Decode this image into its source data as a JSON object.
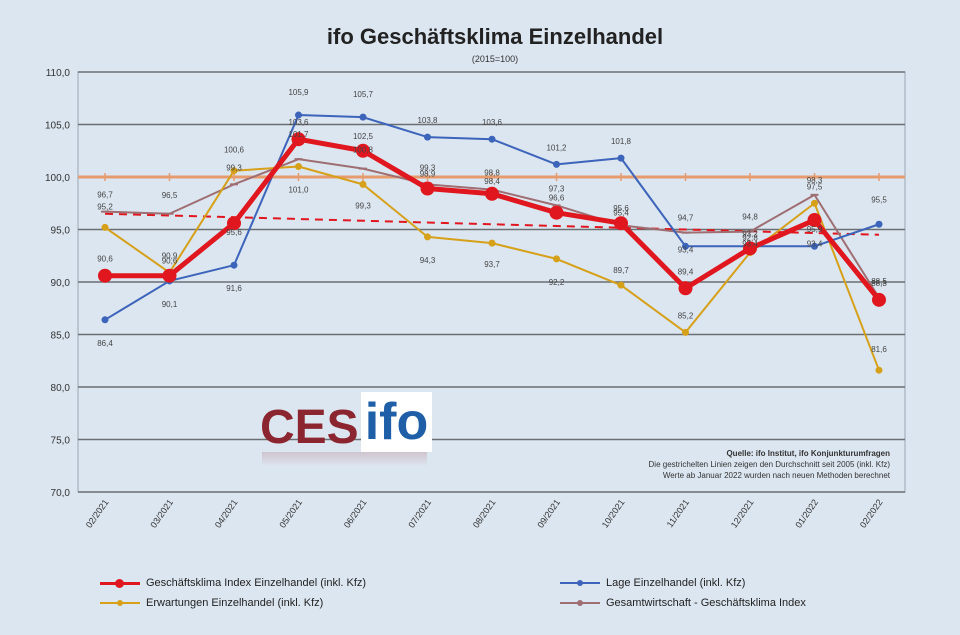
{
  "chart_data": {
    "type": "line",
    "title": "ifo Geschäftsklima Einzelhandel",
    "subtitle": "(2015=100)",
    "categories": [
      "02/2021",
      "03/2021",
      "04/2021",
      "05/2021",
      "06/2021",
      "07/2021",
      "08/2021",
      "09/2021",
      "10/2021",
      "11/2021",
      "12/2021",
      "01/2022",
      "02/2022"
    ],
    "ylim": [
      70,
      110
    ],
    "yticks": [
      "70,0",
      "75,0",
      "80,0",
      "85,0",
      "90,0",
      "95,0",
      "100,0",
      "105,0",
      "110,0"
    ],
    "grid": true,
    "reference_line": {
      "value": 100,
      "color": "#e69b6e"
    },
    "series": [
      {
        "name": "Geschäftsklima Index Einzelhandel (inkl. Kfz)",
        "color": "#e0171e",
        "values": [
          90.6,
          90.6,
          95.6,
          103.6,
          102.5,
          98.9,
          98.4,
          96.6,
          95.6,
          89.4,
          93.2,
          95.9,
          88.3
        ],
        "labels": [
          "90,6",
          "90,6",
          "95,6",
          "103,6",
          "102,5",
          "98,9",
          "98,4",
          "96,6",
          "95,6",
          "89,4",
          "93,2",
          "95,9",
          "88,3"
        ]
      },
      {
        "name": "Lage Einzelhandel (inkl. Kfz)",
        "color": "#3c64ba",
        "values": [
          86.4,
          90.1,
          91.6,
          105.9,
          105.7,
          103.8,
          103.6,
          101.2,
          101.8,
          93.4,
          93.4,
          93.4,
          95.5
        ],
        "labels": [
          "86,4",
          "90,1",
          "91,6",
          "105,9",
          "105,7",
          "103,8",
          "103,6",
          "101,2",
          "101,8",
          "93,4",
          "93,4",
          "93,4",
          "95,5"
        ]
      },
      {
        "name": "Erwartungen Einzelhandel (inkl. Kfz)",
        "color": "#d6a019",
        "values": [
          95.2,
          90.9,
          100.6,
          101.0,
          99.3,
          94.3,
          93.7,
          92.2,
          89.7,
          85.2,
          92.8,
          97.5,
          81.6
        ],
        "labels": [
          "95,2",
          "90,9",
          "100,6",
          "101,0",
          "99,3",
          "94,3",
          "93,7",
          "92,2",
          "89,7",
          "85,2",
          "92,8",
          "97,5",
          "81,6"
        ]
      },
      {
        "name": "Gesamtwirtschaft - Geschäftsklima Index",
        "color": "#9e6e72",
        "values": [
          96.7,
          96.5,
          99.3,
          101.7,
          100.8,
          99.3,
          98.8,
          97.3,
          95.4,
          94.7,
          94.8,
          98.3,
          88.5
        ],
        "labels": [
          "96,7",
          "96,5",
          "99,3",
          "101,7",
          "100,8",
          "99,3",
          "98,8",
          "97,3",
          "95,4",
          "94,7",
          "94,8",
          "98,3",
          "88,5"
        ]
      }
    ],
    "average_lines": [
      {
        "color": "#e0171e",
        "from_value": 96.5,
        "to_value": 94.5
      }
    ],
    "legend_placement": "bottom"
  },
  "source": {
    "line1": "Quelle: ifo Institut, ifo Konjunkturumfragen",
    "line2": "Die gestrichelten Linien zeigen den Durchschnitt seit 2005 (inkl. Kfz)",
    "line3": "Werte ab Januar 2022 wurden nach neuen Methoden berechnet"
  },
  "logo": {
    "part1": "CES",
    "part2": "ifo"
  }
}
